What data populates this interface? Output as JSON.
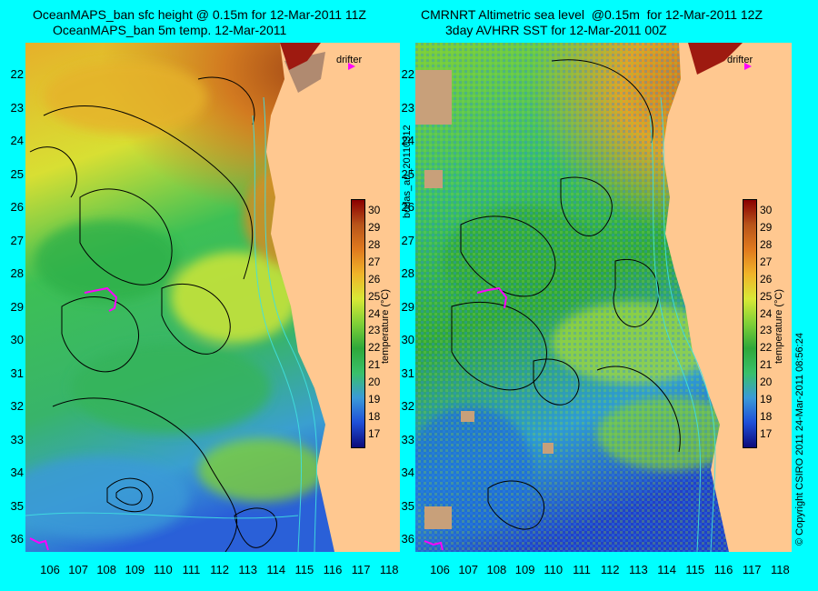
{
  "left_panel": {
    "title_line1": "OceanMAPS_ban sfc height @ 0.15m for 12-Mar-2011 11Z",
    "title_line2": "OceanMAPS_ban 5m temp. 12-Mar-2011",
    "drifter_label": "drifter"
  },
  "right_panel": {
    "title_line1": "CMRNRT Altimetric sea level  @0.15m  for 12-Mar-2011 12Z",
    "title_line2": "3day AVHRR SST for 12-Mar-2011 00Z",
    "drifter_label": "drifter"
  },
  "latitude_labels": [
    "22",
    "23",
    "24",
    "25",
    "26",
    "27",
    "28",
    "29",
    "30",
    "31",
    "32",
    "33",
    "34",
    "35",
    "36"
  ],
  "longitude_labels": [
    "106",
    "107",
    "108",
    "109",
    "110",
    "111",
    "112",
    "113",
    "114",
    "115",
    "116",
    "117",
    "118"
  ],
  "colorbar": {
    "title": "temperature (°C)",
    "ticks": [
      "30",
      "29",
      "28",
      "27",
      "26",
      "25",
      "24",
      "23",
      "22",
      "21",
      "20",
      "19",
      "18",
      "17"
    ],
    "range": [
      16.3,
      30.7
    ],
    "colors": [
      "#0b0b7a",
      "#1f4fd8",
      "#3a9ad8",
      "#39c06a",
      "#2fa83a",
      "#7fd037",
      "#d8e836",
      "#f0b429",
      "#e07a1e",
      "#b8541a",
      "#8b0000"
    ]
  },
  "side_label": "bodas_an_20110312",
  "copyright": "© Copyright CSIRO 2011   24-Mar-2011 08:56:24"
}
